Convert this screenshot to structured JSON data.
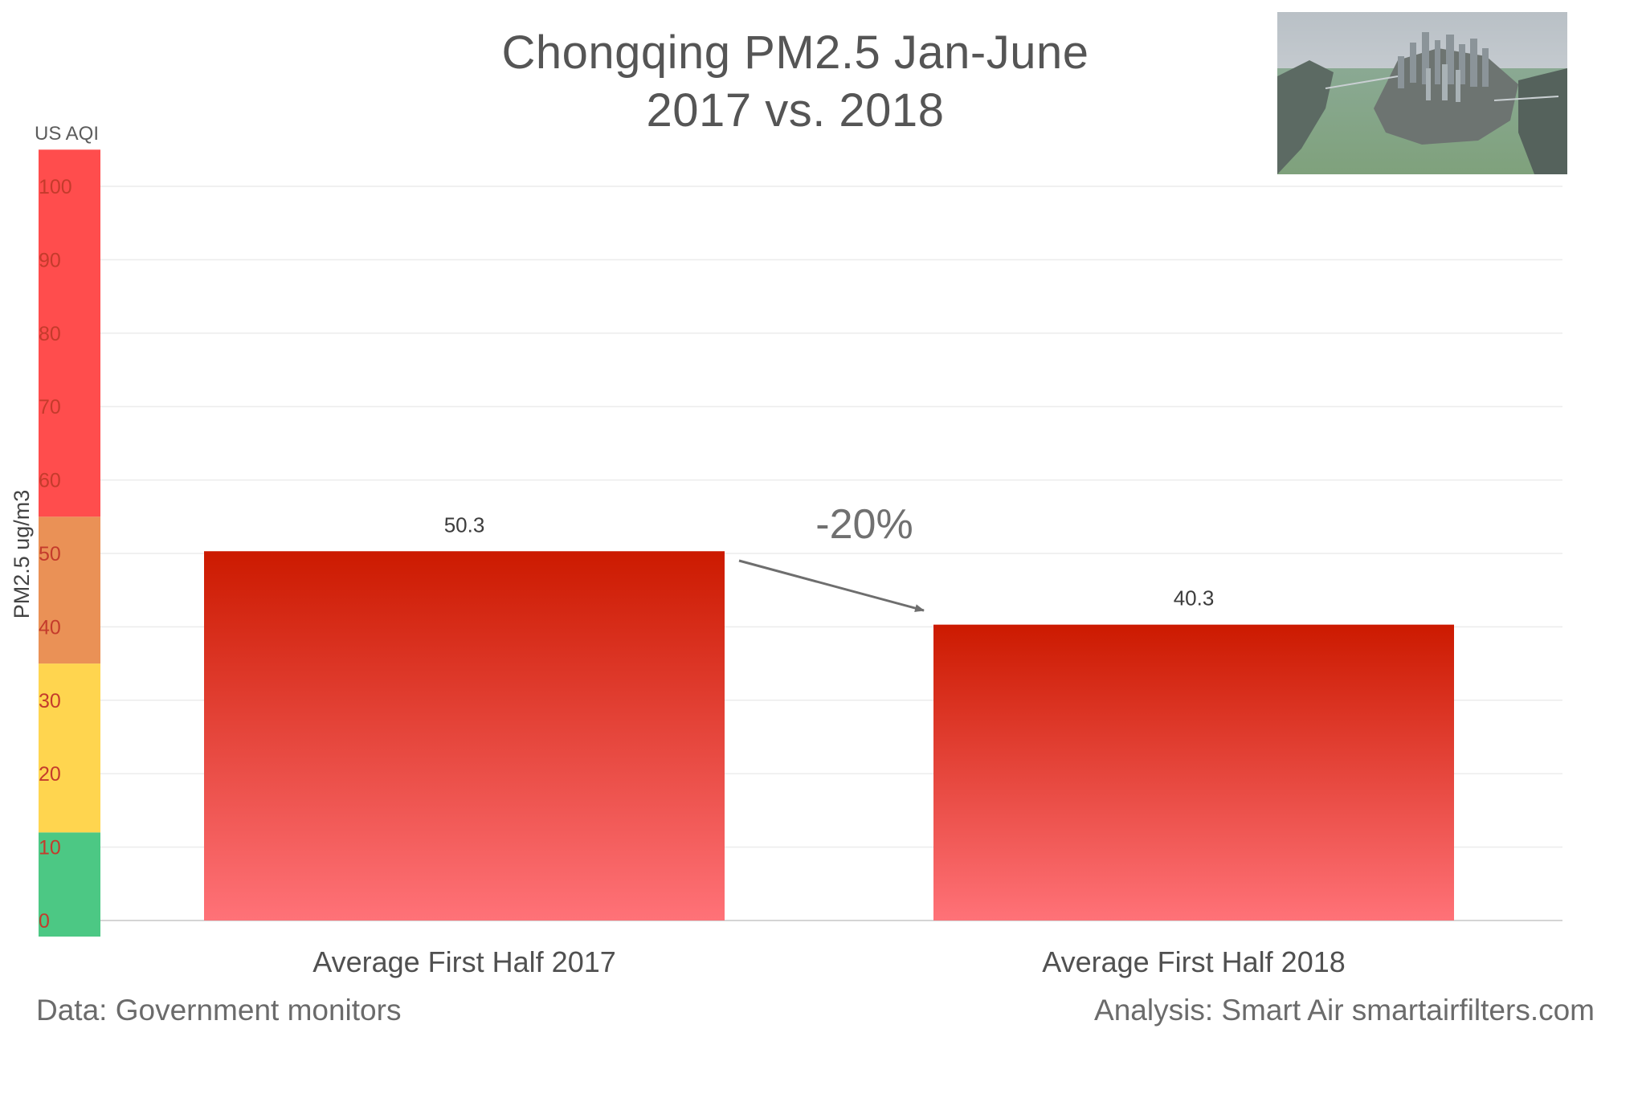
{
  "title_line1": "Chongqing PM2.5 Jan-June",
  "title_line2": "2017 vs. 2018",
  "footer_left": "Data: Government monitors",
  "footer_right": "Analysis: Smart Air smartairfilters.com",
  "chart_data": {
    "type": "bar",
    "categories": [
      "Average First Half 2017",
      "Average First Half 2018"
    ],
    "values": [
      50.3,
      40.3
    ],
    "data_labels": [
      "50.3",
      "40.3"
    ],
    "ylabel": "PM2.5 ug/m3",
    "ylim": [
      0,
      100
    ],
    "yticks": [
      "0",
      "10",
      "20",
      "30",
      "40",
      "50",
      "60",
      "70",
      "80",
      "90",
      "100"
    ],
    "grid": true,
    "aqi_scale": {
      "label": "US AQI",
      "bands": [
        {
          "from": 0,
          "to": 12,
          "color": "#4cc884"
        },
        {
          "from": 12,
          "to": 35,
          "color": "#ffd54f"
        },
        {
          "from": 35,
          "to": 55,
          "color": "#ea9156"
        },
        {
          "from": 55,
          "to": 105,
          "color": "#ff4d4d"
        }
      ]
    },
    "annotation": {
      "text": "-20%",
      "from_category": 0,
      "to_category": 1
    },
    "bar_color_top": "#cc1a00",
    "bar_color_bottom": "#ff7278"
  }
}
